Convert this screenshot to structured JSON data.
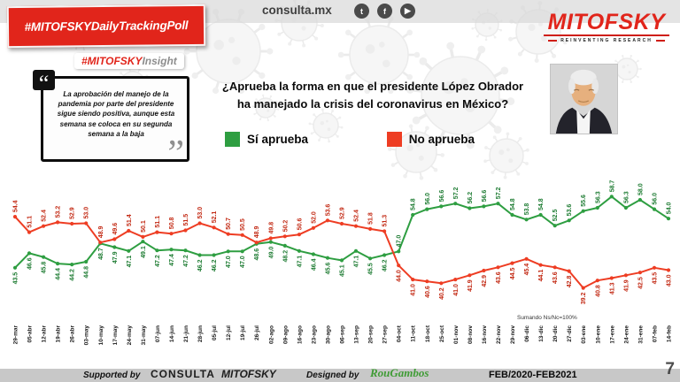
{
  "header": {
    "badge": "#MITOFSKYDailyTrackingPoll",
    "site": "consulta.mx",
    "logo": "MITOFSKY",
    "logo_tagline": "REINVENTING RESEARCH"
  },
  "icons": {
    "twitter": "t",
    "facebook": "f",
    "youtube": "▶"
  },
  "insight": {
    "hash": "#MITOFSKY",
    "word": "Insight"
  },
  "quote": {
    "open": "“",
    "close": "”",
    "text": "La aprobación del manejo de la pandemia por parte del presidente sigue siendo positiva, aunque esta semana se coloca en su segunda semana a la baja"
  },
  "title": {
    "line1": "¿Aprueba la forma en que el presidente López Obrador",
    "line2": "ha manejado la crisis del coronavirus en México?"
  },
  "legend": {
    "si": "Sí aprueba",
    "no": "No aprueba"
  },
  "note": "Sumando Ns/Nc=100%",
  "footer": {
    "supported_by": "Supported by",
    "brand1": "CONSULTA",
    "brand2": "MITOFSKY",
    "designed_by": "Designed by",
    "designer": "RouGambos",
    "period": "FEB/2020-FEB2021",
    "page": "7"
  },
  "colors": {
    "brand_red": "#e1251b",
    "green": "#2e9e41",
    "red": "#ee3d23",
    "footer_gray": "#c8c8c8"
  },
  "chart_data": {
    "type": "line",
    "title": "¿Aprueba la forma en que el presidente López Obrador ha manejado la crisis del coronavirus en México?",
    "x": [
      "29-mar",
      "05-abr",
      "12-abr",
      "19-abr",
      "26-abr",
      "03-may",
      "10-may",
      "17-may",
      "24-may",
      "31-may",
      "07-jun",
      "14-jun",
      "21-jun",
      "28-jun",
      "05-jul",
      "12-jul",
      "19-jul",
      "26-jul",
      "02-ago",
      "09-ago",
      "16-ago",
      "23-ago",
      "30-ago",
      "06-sep",
      "13-sep",
      "20-sep",
      "27-sep",
      "04-oct",
      "11-oct",
      "18-oct",
      "25-oct",
      "01-nov",
      "08-nov",
      "16-nov",
      "22-nov",
      "29-nov",
      "06-dic",
      "13-dic",
      "20-dic",
      "27-dic",
      "03-ene",
      "10-ene",
      "17-ene",
      "24-ene",
      "31-ene",
      "07-feb",
      "14-feb"
    ],
    "series": [
      {
        "name": "Sí aprueba",
        "color": "#2e9e41",
        "label_color": "#1b7a30",
        "values": [
          43.5,
          46.6,
          45.8,
          44.4,
          44.2,
          44.8,
          48.7,
          47.9,
          47.1,
          49.1,
          47.2,
          47.4,
          47.2,
          46.2,
          46.2,
          47.0,
          47.0,
          48.6,
          49.0,
          48.2,
          47.1,
          46.4,
          45.6,
          45.1,
          47.1,
          45.5,
          46.2,
          47.0,
          54.8,
          56.0,
          56.6,
          57.2,
          56.2,
          56.6,
          57.2,
          54.8,
          53.8,
          54.8,
          52.5,
          53.6,
          55.6,
          56.3,
          58.7,
          56.3,
          58.0,
          56.0,
          54.0
        ]
      },
      {
        "name": "No aprueba",
        "color": "#ee3d23",
        "label_color": "#c22711",
        "values": [
          54.4,
          51.1,
          52.4,
          53.2,
          52.9,
          53.0,
          48.9,
          49.6,
          51.4,
          50.1,
          51.1,
          50.8,
          51.5,
          53.0,
          52.1,
          50.7,
          50.5,
          48.9,
          49.8,
          50.2,
          50.6,
          52.0,
          53.6,
          52.9,
          52.4,
          51.8,
          51.3,
          44.0,
          41.0,
          40.6,
          40.2,
          41.0,
          41.9,
          42.9,
          43.6,
          44.5,
          45.4,
          44.1,
          43.6,
          42.8,
          39.2,
          40.8,
          41.3,
          41.9,
          42.5,
          43.5,
          43.0
        ]
      }
    ],
    "ylim": [
      35,
      62
    ],
    "grid": false,
    "data_labels": true,
    "legend_position": "top",
    "note": "Sumando Ns/Nc=100%"
  }
}
